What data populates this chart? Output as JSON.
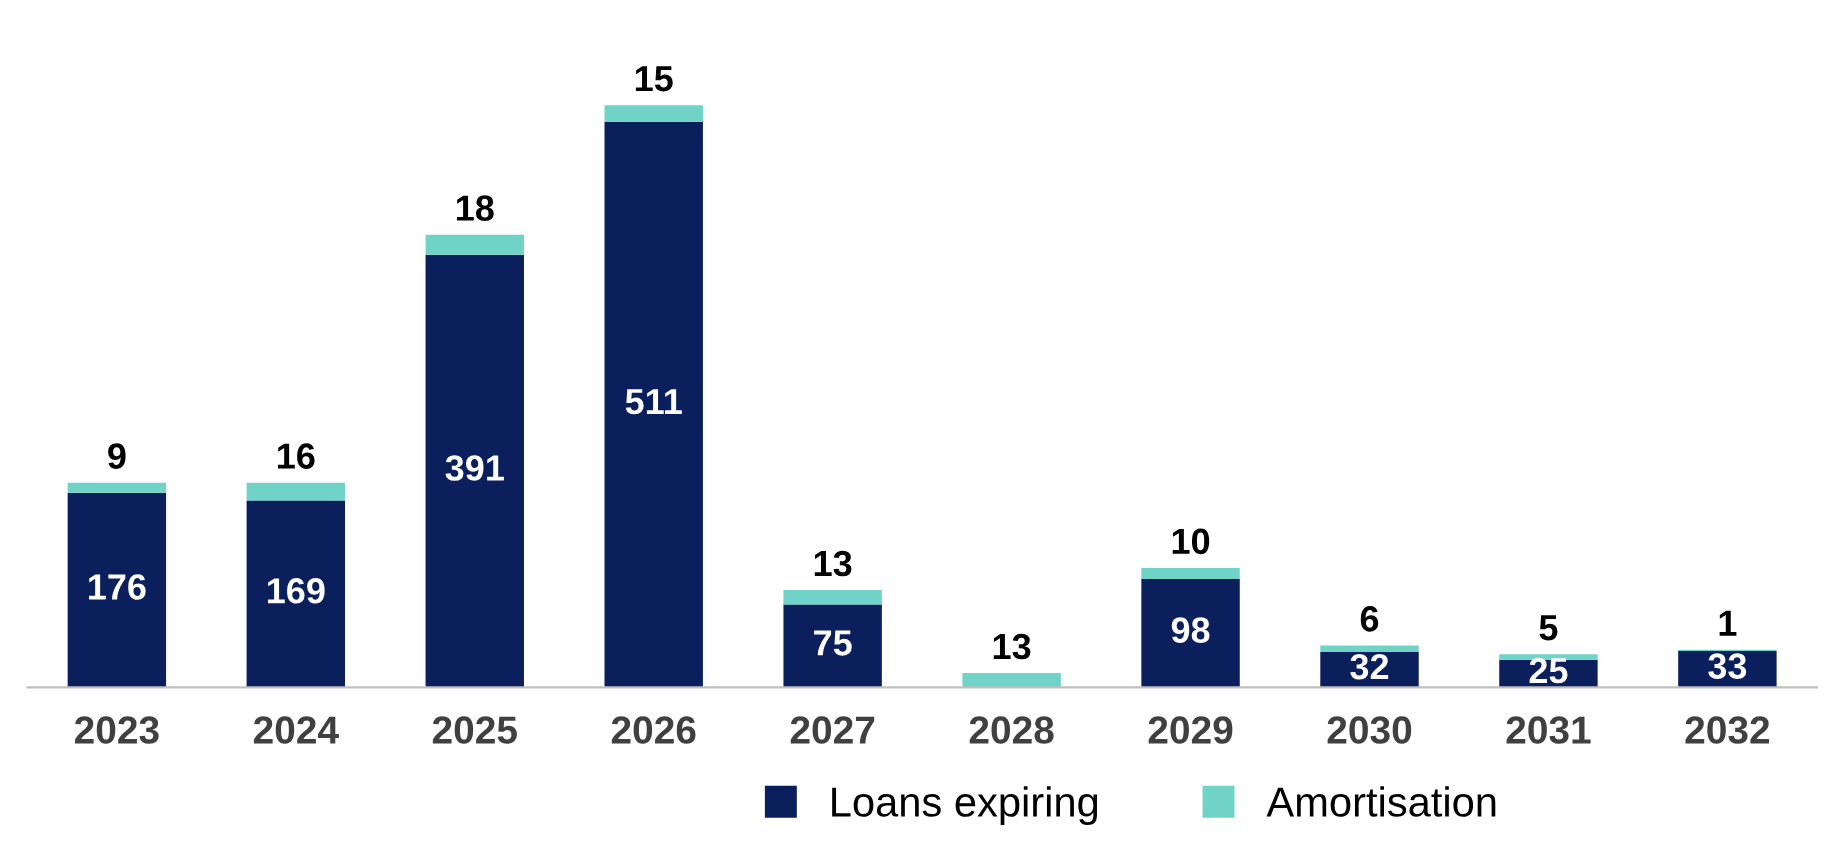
{
  "chart_data": {
    "type": "bar",
    "stacked": true,
    "data_labels": true,
    "legend": "bottom",
    "grid": false,
    "categories": [
      "2023",
      "2024",
      "2025",
      "2026",
      "2027",
      "2028",
      "2029",
      "2030",
      "2031",
      "2032"
    ],
    "series": [
      {
        "name": "Loans expiring",
        "color": "#0b1f5c",
        "values": [
          176,
          169,
          391,
          511,
          75,
          null,
          98,
          32,
          25,
          33
        ]
      },
      {
        "name": "Amortisation",
        "color": "#6fd3c7",
        "values": [
          9,
          16,
          18,
          15,
          13,
          13,
          10,
          6,
          5,
          1
        ]
      }
    ]
  }
}
